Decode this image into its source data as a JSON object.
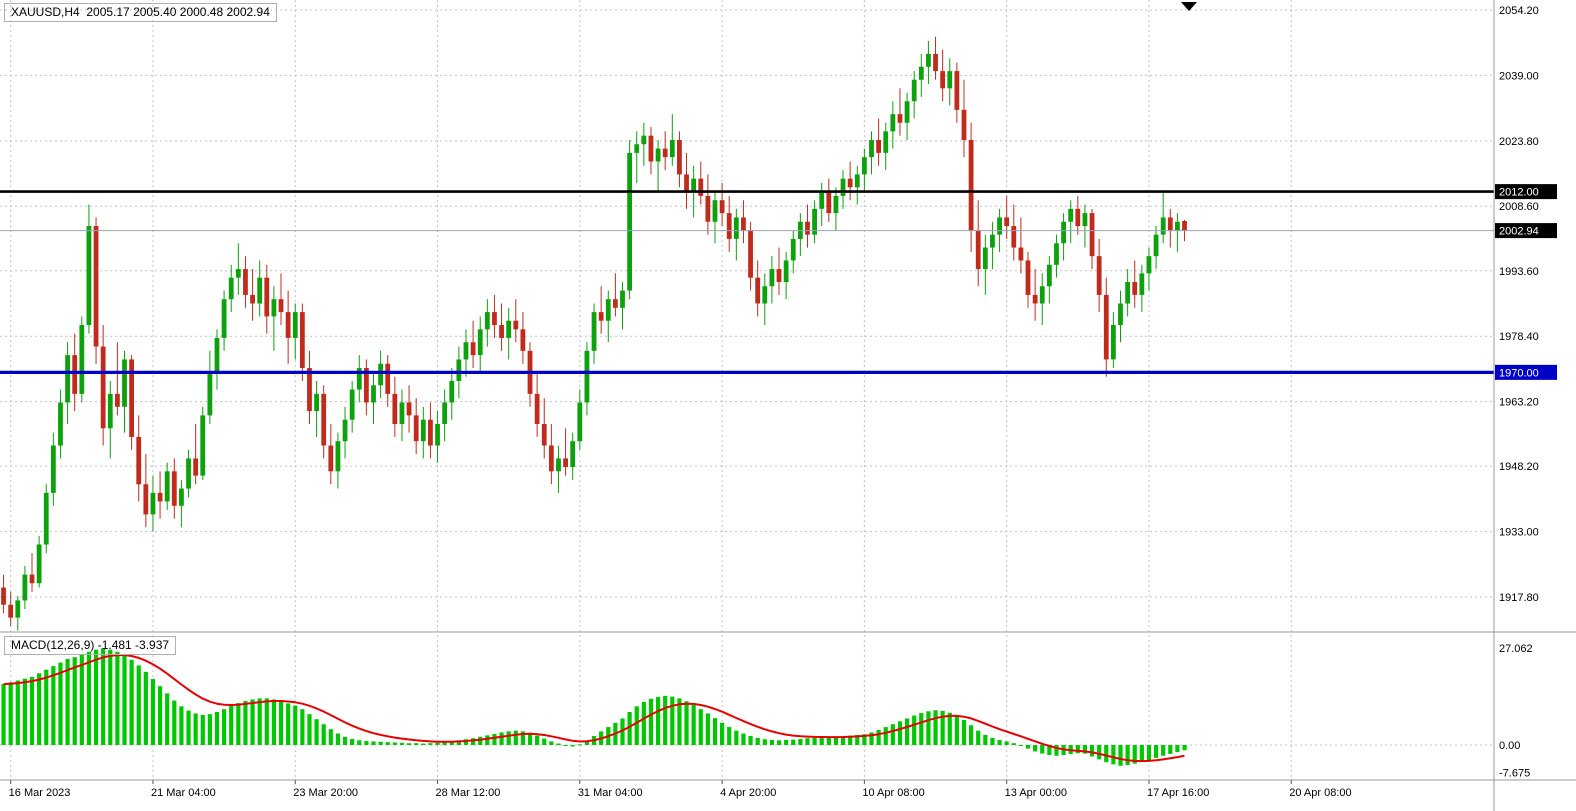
{
  "window": {
    "symbol_readout": "XAUUSD,H4  2005.17 2005.40 2000.48 2002.94",
    "macd_readout": "MACD(12,26,9) -1.481 -3.937"
  },
  "chart_data": {
    "type": "candlestick",
    "symbol": "XAUUSD",
    "timeframe": "H4",
    "current_bar": {
      "open": 2005.17,
      "high": 2005.4,
      "low": 2000.48,
      "close": 2002.94
    },
    "price_axis_labels": [
      "2054.20",
      "2039.00",
      "2023.80",
      "2008.60",
      "1993.60",
      "1978.40",
      "1963.20",
      "1948.20",
      "1933.00",
      "1917.80"
    ],
    "hlines": [
      {
        "label": "2012.00",
        "value": 2012.0,
        "line_color": "#000000",
        "line_width": 2.6,
        "badge_bg": "#000000"
      },
      {
        "label": "2002.94",
        "value": 2002.94,
        "line_color": "#9aa2b8",
        "line_width": 1,
        "badge_bg": "#000000"
      },
      {
        "label": "1970.00",
        "value": 1970.0,
        "line_color": "#0000C8",
        "line_width": 3.2,
        "badge_bg": "#0000C8"
      }
    ],
    "time_axis_labels": [
      "16 Mar 2023",
      "21 Mar 04:00",
      "23 Mar 20:00",
      "28 Mar 12:00",
      "31 Mar 04:00",
      "4 Apr 20:00",
      "10 Apr 08:00",
      "13 Apr 00:00",
      "17 Apr 16:00",
      "20 Apr 08:00"
    ],
    "candles": [
      [
        1920,
        1923,
        1914,
        1916
      ],
      [
        1916,
        1919,
        1911,
        1913
      ],
      [
        1913,
        1918,
        1910,
        1917
      ],
      [
        1917,
        1925,
        1915,
        1923
      ],
      [
        1923,
        1928,
        1919,
        1921
      ],
      [
        1921,
        1932,
        1920,
        1930
      ],
      [
        1930,
        1944,
        1928,
        1942
      ],
      [
        1942,
        1956,
        1939,
        1953
      ],
      [
        1953,
        1966,
        1950,
        1963
      ],
      [
        1963,
        1977,
        1958,
        1974
      ],
      [
        1974,
        1979,
        1961,
        1965
      ],
      [
        1965,
        1983,
        1963,
        1981
      ],
      [
        1981,
        2009,
        1979,
        2004
      ],
      [
        2004,
        2006,
        1972,
        1976
      ],
      [
        1976,
        1981,
        1953,
        1957
      ],
      [
        1957,
        1968,
        1950,
        1965
      ],
      [
        1965,
        1977,
        1960,
        1962
      ],
      [
        1962,
        1975,
        1956,
        1973
      ],
      [
        1973,
        1974,
        1952,
        1955
      ],
      [
        1955,
        1960,
        1940,
        1944
      ],
      [
        1944,
        1951,
        1934,
        1937
      ],
      [
        1937,
        1946,
        1933,
        1942
      ],
      [
        1942,
        1947,
        1936,
        1940
      ],
      [
        1940,
        1949,
        1938,
        1947
      ],
      [
        1947,
        1950,
        1936,
        1939
      ],
      [
        1939,
        1945,
        1934,
        1943
      ],
      [
        1943,
        1952,
        1941,
        1950
      ],
      [
        1950,
        1958,
        1944,
        1946
      ],
      [
        1946,
        1962,
        1945,
        1960
      ],
      [
        1960,
        1975,
        1958,
        1970
      ],
      [
        1970,
        1980,
        1966,
        1978
      ],
      [
        1978,
        1989,
        1975,
        1987
      ],
      [
        1987,
        1995,
        1984,
        1992
      ],
      [
        1992,
        2000,
        1988,
        1994
      ],
      [
        1994,
        1997,
        1985,
        1988
      ],
      [
        1988,
        1994,
        1982,
        1986
      ],
      [
        1986,
        1996,
        1983,
        1992
      ],
      [
        1992,
        1995,
        1979,
        1983
      ],
      [
        1983,
        1990,
        1975,
        1987
      ],
      [
        1987,
        1993,
        1981,
        1984
      ],
      [
        1984,
        1989,
        1972,
        1978
      ],
      [
        1978,
        1986,
        1973,
        1984
      ],
      [
        1984,
        1986,
        1968,
        1971
      ],
      [
        1971,
        1975,
        1958,
        1961
      ],
      [
        1961,
        1968,
        1955,
        1965
      ],
      [
        1965,
        1967,
        1950,
        1953
      ],
      [
        1953,
        1958,
        1944,
        1947
      ],
      [
        1947,
        1956,
        1943,
        1954
      ],
      [
        1954,
        1962,
        1950,
        1959
      ],
      [
        1959,
        1968,
        1956,
        1966
      ],
      [
        1966,
        1974,
        1963,
        1971
      ],
      [
        1971,
        1973,
        1960,
        1963
      ],
      [
        1963,
        1970,
        1958,
        1967
      ],
      [
        1967,
        1975,
        1964,
        1972
      ],
      [
        1972,
        1974,
        1962,
        1965
      ],
      [
        1965,
        1969,
        1955,
        1958
      ],
      [
        1958,
        1966,
        1954,
        1963
      ],
      [
        1963,
        1967,
        1956,
        1960
      ],
      [
        1960,
        1964,
        1951,
        1954
      ],
      [
        1954,
        1962,
        1950,
        1959
      ],
      [
        1959,
        1963,
        1950,
        1953
      ],
      [
        1953,
        1961,
        1949,
        1958
      ],
      [
        1958,
        1966,
        1954,
        1963
      ],
      [
        1963,
        1971,
        1959,
        1968
      ],
      [
        1968,
        1976,
        1964,
        1973
      ],
      [
        1973,
        1980,
        1969,
        1977
      ],
      [
        1977,
        1982,
        1971,
        1974
      ],
      [
        1974,
        1983,
        1970,
        1980
      ],
      [
        1980,
        1987,
        1976,
        1984
      ],
      [
        1984,
        1988,
        1978,
        1981
      ],
      [
        1981,
        1986,
        1975,
        1978
      ],
      [
        1978,
        1985,
        1973,
        1982
      ],
      [
        1982,
        1987,
        1977,
        1980
      ],
      [
        1980,
        1984,
        1972,
        1975
      ],
      [
        1975,
        1977,
        1962,
        1965
      ],
      [
        1965,
        1970,
        1955,
        1958
      ],
      [
        1958,
        1964,
        1950,
        1953
      ],
      [
        1953,
        1958,
        1944,
        1947
      ],
      [
        1947,
        1953,
        1942,
        1950
      ],
      [
        1950,
        1957,
        1946,
        1948
      ],
      [
        1948,
        1956,
        1945,
        1954
      ],
      [
        1954,
        1966,
        1952,
        1963
      ],
      [
        1963,
        1977,
        1960,
        1975
      ],
      [
        1975,
        1986,
        1972,
        1984
      ],
      [
        1984,
        1990,
        1979,
        1982
      ],
      [
        1982,
        1989,
        1977,
        1987
      ],
      [
        1987,
        1993,
        1983,
        1985
      ],
      [
        1985,
        1991,
        1980,
        1989
      ],
      [
        1989,
        2024,
        1987,
        2021
      ],
      [
        2021,
        2026,
        2014,
        2023
      ],
      [
        2023,
        2028,
        2018,
        2025
      ],
      [
        2025,
        2027,
        2016,
        2019
      ],
      [
        2019,
        2024,
        2012,
        2022
      ],
      [
        2022,
        2026,
        2017,
        2020
      ],
      [
        2020,
        2030,
        2018,
        2024
      ],
      [
        2024,
        2026,
        2013,
        2016
      ],
      [
        2016,
        2021,
        2008,
        2012
      ],
      [
        2012,
        2018,
        2006,
        2015
      ],
      [
        2015,
        2019,
        2009,
        2011
      ],
      [
        2011,
        2016,
        2002,
        2005
      ],
      [
        2005,
        2012,
        2000,
        2010
      ],
      [
        2010,
        2014,
        2004,
        2007
      ],
      [
        2007,
        2011,
        1998,
        2001
      ],
      [
        2001,
        2008,
        1996,
        2006
      ],
      [
        2006,
        2010,
        2000,
        2003
      ],
      [
        2003,
        2005,
        1989,
        1992
      ],
      [
        1992,
        1996,
        1983,
        1986
      ],
      [
        1986,
        1993,
        1981,
        1990
      ],
      [
        1990,
        1997,
        1986,
        1994
      ],
      [
        1994,
        1999,
        1988,
        1991
      ],
      [
        1991,
        1998,
        1987,
        1996
      ],
      [
        1996,
        2003,
        1993,
        2001
      ],
      [
        2001,
        2007,
        1997,
        2005
      ],
      [
        2005,
        2009,
        1999,
        2002
      ],
      [
        2002,
        2010,
        2000,
        2008
      ],
      [
        2008,
        2014,
        2004,
        2012
      ],
      [
        2012,
        2015,
        2005,
        2007
      ],
      [
        2007,
        2013,
        2003,
        2011
      ],
      [
        2011,
        2017,
        2008,
        2015
      ],
      [
        2015,
        2019,
        2010,
        2013
      ],
      [
        2013,
        2018,
        2009,
        2016
      ],
      [
        2016,
        2022,
        2012,
        2020
      ],
      [
        2020,
        2026,
        2016,
        2024
      ],
      [
        2024,
        2029,
        2018,
        2021
      ],
      [
        2021,
        2028,
        2017,
        2026
      ],
      [
        2026,
        2033,
        2022,
        2030
      ],
      [
        2030,
        2036,
        2025,
        2028
      ],
      [
        2028,
        2035,
        2024,
        2033
      ],
      [
        2033,
        2040,
        2029,
        2038
      ],
      [
        2038,
        2044,
        2034,
        2041
      ],
      [
        2041,
        2047,
        2037,
        2044
      ],
      [
        2044,
        2048,
        2038,
        2040
      ],
      [
        2040,
        2045,
        2033,
        2036
      ],
      [
        2036,
        2043,
        2032,
        2040
      ],
      [
        2040,
        2042,
        2028,
        2031
      ],
      [
        2031,
        2038,
        2020,
        2024
      ],
      [
        2024,
        2028,
        1998,
        2003
      ],
      [
        2003,
        2010,
        1990,
        1994
      ],
      [
        1994,
        2002,
        1988,
        1999
      ],
      [
        1999,
        2005,
        1994,
        2002
      ],
      [
        2002,
        2008,
        1998,
        2006
      ],
      [
        2006,
        2011,
        2001,
        2004
      ],
      [
        2004,
        2009,
        1996,
        1999
      ],
      [
        1999,
        2006,
        1993,
        1996
      ],
      [
        1996,
        1998,
        1985,
        1988
      ],
      [
        1988,
        1994,
        1982,
        1986
      ],
      [
        1986,
        1993,
        1981,
        1990
      ],
      [
        1990,
        1997,
        1986,
        1995
      ],
      [
        1995,
        2002,
        1992,
        2000
      ],
      [
        2000,
        2007,
        1996,
        2005
      ],
      [
        2005,
        2010,
        2000,
        2008
      ],
      [
        2008,
        2011,
        2002,
        2004
      ],
      [
        2004,
        2009,
        1999,
        2007
      ],
      [
        2007,
        2008,
        1994,
        1997
      ],
      [
        1997,
        2001,
        1984,
        1988
      ],
      [
        1988,
        1992,
        1969,
        1973
      ],
      [
        1973,
        1984,
        1971,
        1981
      ],
      [
        1981,
        1989,
        1977,
        1986
      ],
      [
        1986,
        1994,
        1983,
        1991
      ],
      [
        1991,
        1996,
        1985,
        1988
      ],
      [
        1988,
        1995,
        1984,
        1993
      ],
      [
        1993,
        1999,
        1989,
        1997
      ],
      [
        1997,
        2004,
        1994,
        2002
      ],
      [
        2002,
        2012,
        2000,
        2006
      ],
      [
        2006,
        2008,
        1999,
        2003
      ],
      [
        2003,
        2007,
        1998,
        2005
      ],
      [
        2005.17,
        2005.4,
        2000.48,
        2002.94
      ]
    ],
    "macd": {
      "name": "MACD",
      "params": "12,26,9",
      "main": -1.481,
      "signal": -3.937,
      "axis_labels": [
        "27.062",
        "0.00",
        "-7.675"
      ],
      "histogram": [
        17.0,
        17.5,
        18.0,
        18.5,
        19.0,
        20.0,
        21.0,
        22.0,
        23.0,
        24.0,
        24.5,
        25.2,
        26.0,
        26.6,
        27.0,
        26.6,
        26.0,
        25.0,
        23.8,
        22.2,
        20.4,
        18.4,
        16.4,
        14.4,
        12.4,
        10.8,
        9.6,
        8.8,
        8.4,
        8.6,
        9.2,
        10.0,
        10.9,
        11.7,
        12.3,
        12.7,
        13.0,
        13.0,
        12.7,
        12.2,
        11.6,
        11.0,
        10.0,
        8.6,
        7.2,
        5.8,
        4.4,
        3.2,
        2.3,
        1.7,
        1.3,
        1.1,
        1.0,
        0.9,
        0.8,
        0.7,
        0.6,
        0.5,
        0.5,
        0.4,
        0.5,
        0.6,
        0.8,
        1.0,
        1.3,
        1.6,
        1.9,
        2.3,
        2.7,
        3.1,
        3.5,
        3.8,
        4.0,
        3.8,
        3.4,
        2.6,
        1.8,
        1.0,
        0.4,
        -0.2,
        -0.4,
        0.2,
        1.2,
        2.5,
        3.8,
        5.0,
        6.2,
        7.4,
        9.2,
        10.8,
        12.0,
        12.9,
        13.4,
        13.7,
        13.5,
        13.0,
        12.2,
        11.2,
        10.0,
        8.8,
        7.5,
        6.2,
        5.0,
        4.0,
        3.2,
        2.5,
        2.0,
        1.6,
        1.4,
        1.3,
        1.4,
        1.5,
        1.7,
        1.9,
        2.0,
        2.1,
        2.1,
        2.2,
        2.4,
        2.6,
        2.8,
        3.0,
        3.5,
        4.2,
        5.0,
        5.8,
        6.6,
        7.4,
        8.2,
        8.9,
        9.4,
        9.7,
        9.5,
        9.0,
        8.2,
        7.0,
        5.5,
        4.0,
        2.8,
        2.0,
        1.4,
        1.0,
        0.5,
        -0.2,
        -1.0,
        -1.8,
        -2.4,
        -2.8,
        -3.0,
        -2.8,
        -2.5,
        -2.3,
        -2.4,
        -3.2,
        -4.0,
        -4.8,
        -5.4,
        -5.8,
        -5.6,
        -5.2,
        -4.7,
        -4.2,
        -3.6,
        -3.0,
        -2.5,
        -2.0,
        -1.481
      ]
    },
    "colors": {
      "bull": "#0DA10D",
      "bear": "#C02B1E",
      "macd_hist": "#00C800",
      "macd_signal": "#E80000",
      "grid": "#C0C0CE",
      "axis_text": "#000000",
      "separator": "#9a9a9a",
      "badge_text": "#ffffff"
    }
  }
}
